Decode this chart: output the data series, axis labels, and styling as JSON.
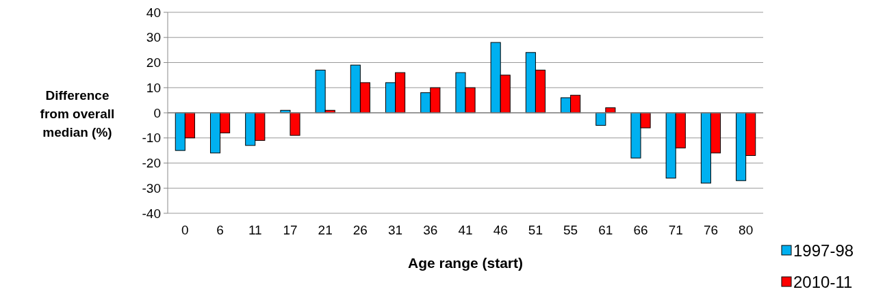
{
  "chart_data": {
    "type": "bar",
    "xlabel": "Age range (start)",
    "ylabel": "Difference from overall median (%)",
    "categories": [
      "0",
      "6",
      "11",
      "17",
      "21",
      "26",
      "31",
      "36",
      "41",
      "46",
      "51",
      "55",
      "61",
      "66",
      "71",
      "76",
      "80"
    ],
    "series": [
      {
        "name": "1997-98",
        "color": "#00b0f0",
        "values": [
          -15,
          -16,
          -13,
          1,
          17,
          19,
          12,
          8,
          16,
          28,
          24,
          6,
          -5,
          -18,
          -26,
          -28,
          -27
        ]
      },
      {
        "name": "2010-11",
        "color": "#ff0000",
        "values": [
          -10,
          -8,
          -11,
          -9,
          1,
          12,
          16,
          10,
          10,
          15,
          17,
          7,
          2,
          -6,
          -14,
          -16,
          -17
        ]
      }
    ],
    "ylim": [
      -40,
      40
    ],
    "yticks": [
      -40,
      -30,
      -20,
      -10,
      0,
      10,
      20,
      30,
      40
    ],
    "grid": "y",
    "legend": "bottom right"
  }
}
